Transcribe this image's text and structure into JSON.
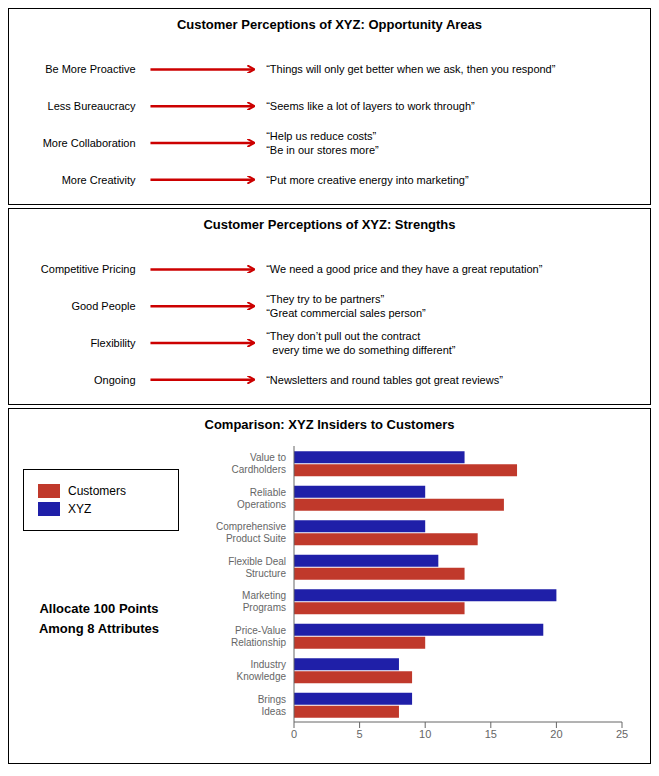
{
  "chart_data": [
    {
      "type": "text",
      "title": "Customer Perceptions of XYZ: Opportunity Areas",
      "color": "#CC0000",
      "annotations": [
        {
          "label": "Be More Proactive",
          "text": "“Things will only get better when we ask, then you respond”"
        },
        {
          "label": "Less Bureaucracy",
          "text": "“Seems like a lot of layers to work through”"
        },
        {
          "label": "More Collaboration",
          "text": "“Help us reduce costs”\n“Be in our stores more”"
        },
        {
          "label": "More Creativity",
          "text": "“Put more creative energy into marketing”"
        }
      ]
    },
    {
      "type": "text",
      "title": "Customer Perceptions of XYZ: Strengths",
      "color": "#CC0000",
      "annotations": [
        {
          "label": "Competitive Pricing",
          "text": "“We need a good price and they have a great reputation”"
        },
        {
          "label": "Good People",
          "text": "“They try to be partners”\n“Great commercial sales person”"
        },
        {
          "label": "Flexibility",
          "text": "“They don’t pull out the contract\n  every time we do something different”"
        },
        {
          "label": "Ongoing",
          "text": "“Newsletters and round tables got great reviews”"
        }
      ]
    },
    {
      "type": "bar",
      "orientation": "horizontal",
      "title": "Comparison: XYZ Insiders to Customers",
      "annotations": [
        "Allocate 100 Points\nAmong 8 Attributes"
      ],
      "categories": [
        "Value to\nCardholders",
        "Reliable\nOperations",
        "Comprehensive\nProduct Suite",
        "Flexible Deal\nStructure",
        "Marketing\nPrograms",
        "Price-Value\nRelationship",
        "Industry\nKnowledge",
        "Brings\nIdeas"
      ],
      "series": [
        {
          "name": "Customers",
          "color": "#C0392B",
          "values": [
            17,
            16,
            14,
            13,
            13,
            10,
            9,
            8
          ]
        },
        {
          "name": "XYZ",
          "color": "#1F1FA8",
          "values": [
            13,
            10,
            10,
            11,
            20,
            19,
            8,
            9
          ]
        }
      ],
      "xlim": [
        0,
        25
      ],
      "xticks": [
        0,
        5,
        10,
        15,
        20,
        25
      ],
      "legend": "left",
      "grid": false
    }
  ]
}
